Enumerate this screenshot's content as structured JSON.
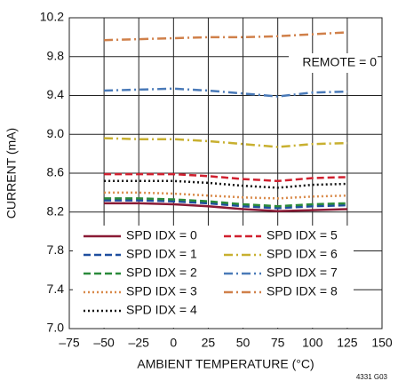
{
  "chart_data": {
    "type": "line",
    "x_label": "AMBIENT TEMPERATURE (°C)",
    "y_label": "CURRENT (mA)",
    "annotations": [
      "REMOTE = 0",
      "4331 G03"
    ],
    "x": [
      -50,
      -25,
      0,
      25,
      50,
      75,
      100,
      125
    ],
    "xlim": [
      -75,
      150
    ],
    "xticks": [
      {
        "value": -75,
        "label": "–75"
      },
      {
        "value": -50,
        "label": "–50"
      },
      {
        "value": -25,
        "label": "–25"
      },
      0,
      25,
      50,
      75,
      100,
      125,
      150
    ],
    "ylim": [
      7.0,
      10.2
    ],
    "yticks": [
      {
        "value": 7.0,
        "label": "7.0"
      },
      7.4,
      7.8,
      8.2,
      8.6,
      {
        "value": 9.0,
        "label": "9.0"
      },
      9.4,
      9.8,
      10.2
    ],
    "grid": true,
    "legend": "bottom-left",
    "series": [
      {
        "name": "SPD IDX = 0",
        "color": "#8a1a35",
        "style": "solid",
        "values": [
          8.29,
          8.29,
          8.28,
          8.26,
          8.23,
          8.21,
          8.22,
          8.23
        ]
      },
      {
        "name": "SPD IDX = 1",
        "color": "#1f4f9f",
        "style": "dashed",
        "values": [
          8.32,
          8.32,
          8.31,
          8.29,
          8.26,
          8.24,
          8.26,
          8.27
        ]
      },
      {
        "name": "SPD IDX = 2",
        "color": "#2a8a3a",
        "style": "dashed",
        "values": [
          8.34,
          8.34,
          8.33,
          8.31,
          8.28,
          8.26,
          8.28,
          8.29
        ]
      },
      {
        "name": "SPD IDX = 3",
        "color": "#d98a4a",
        "style": "dotted",
        "values": [
          8.4,
          8.4,
          8.39,
          8.37,
          8.35,
          8.34,
          8.36,
          8.37
        ]
      },
      {
        "name": "SPD IDX = 4",
        "color": "#111111",
        "style": "dotted",
        "values": [
          8.52,
          8.52,
          8.52,
          8.5,
          8.47,
          8.45,
          8.48,
          8.49
        ]
      },
      {
        "name": "SPD IDX = 5",
        "color": "#d0202f",
        "style": "dashed",
        "values": [
          8.59,
          8.59,
          8.59,
          8.57,
          8.54,
          8.52,
          8.55,
          8.56
        ]
      },
      {
        "name": "SPD IDX = 6",
        "color": "#c8b030",
        "style": "dashdot",
        "values": [
          8.96,
          8.95,
          8.95,
          8.93,
          8.9,
          8.87,
          8.9,
          8.91
        ]
      },
      {
        "name": "SPD IDX = 7",
        "color": "#4a7ab8",
        "style": "dashdot",
        "values": [
          9.45,
          9.46,
          9.47,
          9.45,
          9.42,
          9.39,
          9.43,
          9.44
        ]
      },
      {
        "name": "SPD IDX = 8",
        "color": "#d0804a",
        "style": "dashdot",
        "values": [
          9.97,
          9.98,
          9.99,
          10.0,
          10.0,
          10.01,
          10.03,
          10.05
        ]
      }
    ]
  }
}
